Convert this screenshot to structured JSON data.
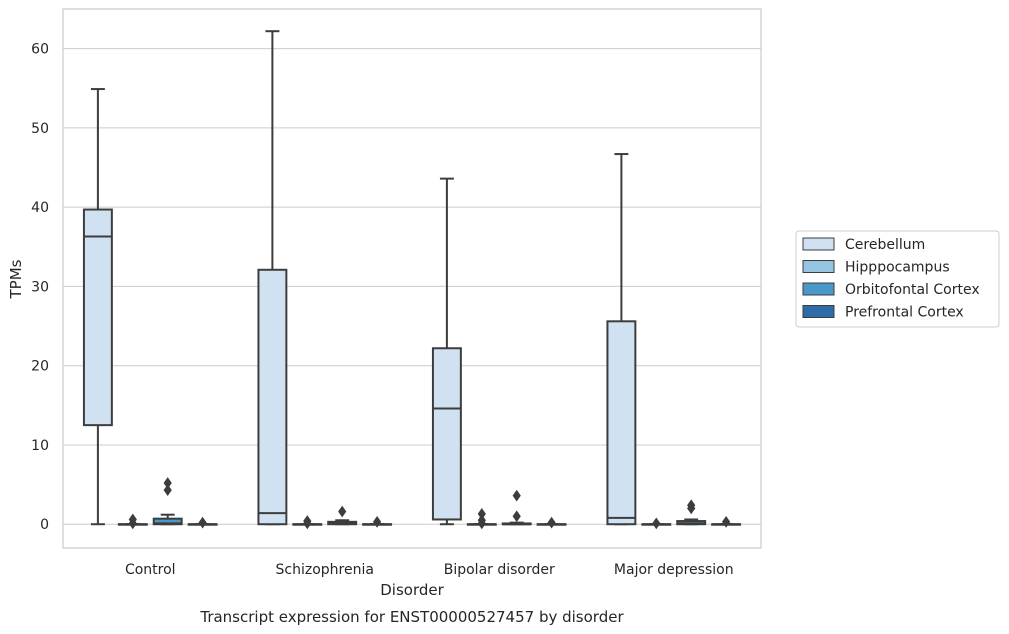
{
  "chart_data": {
    "type": "box",
    "title": "",
    "caption": "Transcript expression for ENST00000527457 by disorder",
    "xlabel": "Disorder",
    "ylabel": "TPMs",
    "ylim": [
      -3,
      65
    ],
    "yticks": [
      0,
      10,
      20,
      30,
      40,
      50,
      60
    ],
    "grid": true,
    "legend": {
      "position": "right"
    },
    "categories": [
      "Control",
      "Schizophrenia",
      "Bipolar disorder",
      "Major depression"
    ],
    "series": [
      {
        "name": "Cerebellum",
        "color": "#d0e1f2",
        "boxes": [
          {
            "whisker_low": 0,
            "q1": 12.5,
            "median": 36.3,
            "q3": 39.7,
            "whisker_high": 54.9,
            "outliers": []
          },
          {
            "whisker_low": 0,
            "q1": 0,
            "median": 1.4,
            "q3": 32.1,
            "whisker_high": 62.2,
            "outliers": []
          },
          {
            "whisker_low": 0,
            "q1": 0.6,
            "median": 14.6,
            "q3": 22.2,
            "whisker_high": 43.6,
            "outliers": []
          },
          {
            "whisker_low": 0,
            "q1": 0,
            "median": 0.8,
            "q3": 25.6,
            "whisker_high": 46.7,
            "outliers": []
          }
        ]
      },
      {
        "name": "Hipppocampus",
        "color": "#94c4df",
        "boxes": [
          {
            "whisker_low": 0,
            "q1": 0,
            "median": 0,
            "q3": 0,
            "whisker_high": 0,
            "outliers": [
              0.1,
              0.6
            ]
          },
          {
            "whisker_low": 0,
            "q1": 0,
            "median": 0,
            "q3": 0,
            "whisker_high": 0,
            "outliers": [
              0.1,
              0.4
            ]
          },
          {
            "whisker_low": 0,
            "q1": 0,
            "median": 0,
            "q3": 0,
            "whisker_high": 0,
            "outliers": [
              0.1,
              0.5,
              1.3
            ]
          },
          {
            "whisker_low": 0,
            "q1": 0,
            "median": 0,
            "q3": 0,
            "whisker_high": 0,
            "outliers": [
              0.1
            ]
          }
        ]
      },
      {
        "name": "Orbitofontal Cortex",
        "color": "#4a98c9",
        "boxes": [
          {
            "whisker_low": 0,
            "q1": 0,
            "median": 0.1,
            "q3": 0.7,
            "whisker_high": 1.2,
            "outliers": [
              4.3,
              5.2
            ]
          },
          {
            "whisker_low": 0,
            "q1": 0,
            "median": 0.1,
            "q3": 0.3,
            "whisker_high": 0.5,
            "outliers": [
              1.6
            ]
          },
          {
            "whisker_low": 0,
            "q1": 0,
            "median": 0,
            "q3": 0.1,
            "whisker_high": 0.2,
            "outliers": [
              1.0,
              3.6
            ]
          },
          {
            "whisker_low": 0,
            "q1": 0,
            "median": 0.1,
            "q3": 0.4,
            "whisker_high": 0.6,
            "outliers": [
              2.0,
              2.4
            ]
          }
        ]
      },
      {
        "name": "Prefrontal Cortex",
        "color": "#2e6ca8",
        "boxes": [
          {
            "whisker_low": 0,
            "q1": 0,
            "median": 0,
            "q3": 0,
            "whisker_high": 0,
            "outliers": [
              0.2
            ]
          },
          {
            "whisker_low": 0,
            "q1": 0,
            "median": 0,
            "q3": 0,
            "whisker_high": 0,
            "outliers": [
              0.3
            ]
          },
          {
            "whisker_low": 0,
            "q1": 0,
            "median": 0,
            "q3": 0,
            "whisker_high": 0,
            "outliers": [
              0.2
            ]
          },
          {
            "whisker_low": 0,
            "q1": 0,
            "median": 0,
            "q3": 0,
            "whisker_high": 0,
            "outliers": [
              0.3
            ]
          }
        ]
      }
    ]
  }
}
